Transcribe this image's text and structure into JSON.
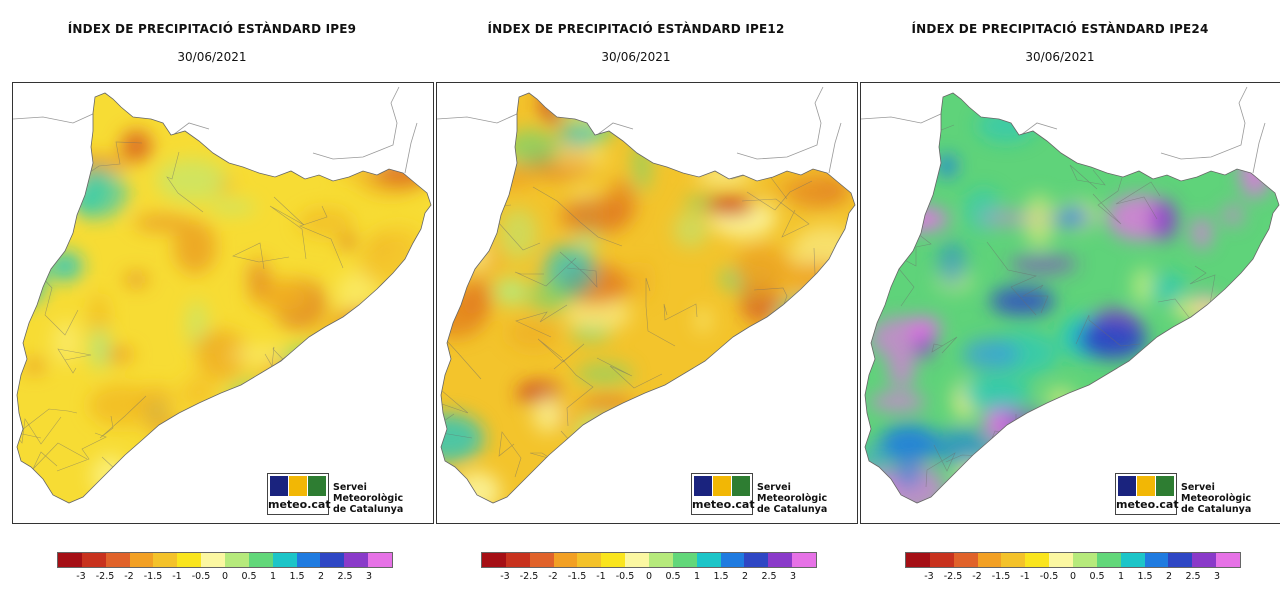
{
  "panels": [
    {
      "id": "ipe9",
      "title": "ÍNDEX DE PRECIPITACIÓ ESTÀNDARD IPE9",
      "date": "30/06/2021",
      "palette": "dry_mild"
    },
    {
      "id": "ipe12",
      "title": "ÍNDEX DE PRECIPITACIÓ ESTÀNDARD IPE12",
      "date": "30/06/2021",
      "palette": "dry_strong"
    },
    {
      "id": "ipe24",
      "title": "ÍNDEX DE PRECIPITACIÓ ESTÀNDARD IPE24",
      "date": "30/06/2021",
      "palette": "wet"
    }
  ],
  "logo": {
    "text": "meteo.cat",
    "org_line1": "Servei Meteorològic",
    "org_line2": "de Catalunya",
    "colors": [
      "#1a237e",
      "#f2b705",
      "#2e7d32"
    ]
  },
  "legend": {
    "colors": [
      "#a50f15",
      "#c8321e",
      "#e0622a",
      "#f2a024",
      "#f4c22a",
      "#fae51e",
      "#fbf7a2",
      "#b6ea7c",
      "#62d77a",
      "#1cc5c8",
      "#1f7be0",
      "#2e46c4",
      "#8a3ac9",
      "#e672e6"
    ],
    "ticks": [
      "-3",
      "-2.5",
      "-2",
      "-1.5",
      "-1",
      "-0.5",
      "0",
      "0.5",
      "1",
      "1.5",
      "2",
      "2.5",
      "3"
    ]
  },
  "map_palettes": {
    "dry_mild": {
      "base": "#f7dc34",
      "blobs": [
        "#f4c22a",
        "#f0b022",
        "#fbf07a",
        "#b6ea7c",
        "#62d77a",
        "#e89020",
        "#d9621e",
        "#1cc5c8"
      ]
    },
    "dry_strong": {
      "base": "#f3c42c",
      "blobs": [
        "#eea524",
        "#e0781f",
        "#fbf07a",
        "#fbf7a2",
        "#b6ea7c",
        "#c8321e",
        "#1cc5c8",
        "#62d77a"
      ]
    },
    "wet": {
      "base": "#5fd37a",
      "blobs": [
        "#1f7be0",
        "#2e46c4",
        "#1cc5c8",
        "#b6ea7c",
        "#fbf07a",
        "#8a3ac9",
        "#e672e6",
        "#3aa0d8"
      ]
    }
  }
}
